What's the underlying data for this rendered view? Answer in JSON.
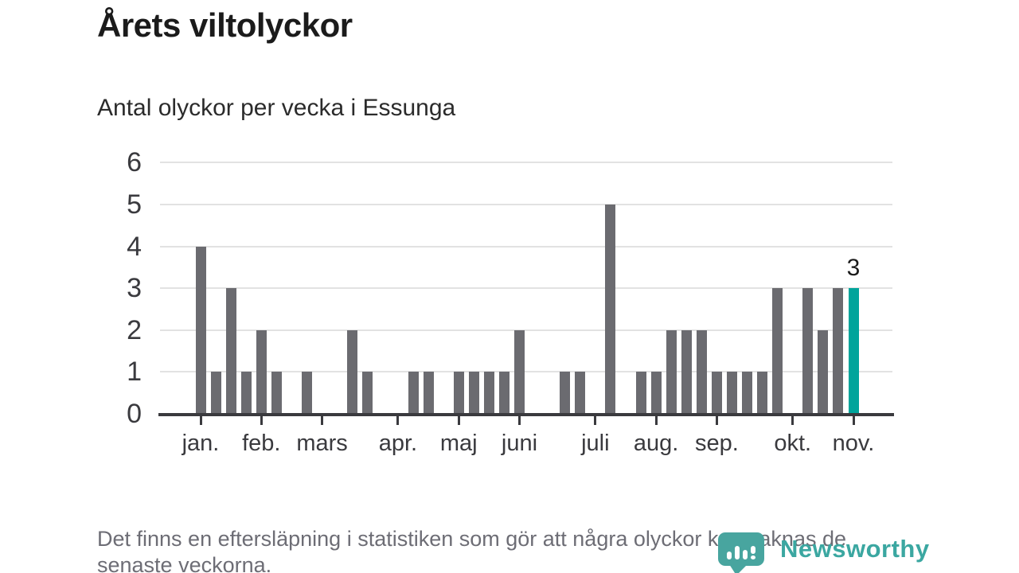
{
  "title": "Årets viltolyckor",
  "subtitle": "Antal olyckor per vecka i Essunga",
  "footnote": {
    "line1": "Det finns en eftersläpning i statistiken som gör att några olyckor kan saknas de",
    "line2": "senaste veckorna."
  },
  "logo": {
    "wordmark": "Newsworthy",
    "mark_icon": "newsworthy-pin-bar-chart-icon"
  },
  "colors": {
    "bar": "#6b6b70",
    "highlight": "#00a49b",
    "grid": "#e2e2e2",
    "axis": "#3a3a3e",
    "tick_label": "#3a3a3e",
    "title": "#1b1b1b",
    "subtitle": "#2b2b2b",
    "footnote": "#6d6d75",
    "logo": "#3ba7a1",
    "annotation": "#1b1b1b"
  },
  "chart_data": {
    "type": "bar",
    "title": "Årets viltolyckor",
    "subtitle": "Antal olyckor per vecka i Essunga",
    "x_unit": "week",
    "ylabel": "",
    "ylim": [
      0,
      6
    ],
    "yticks": [
      0,
      1,
      2,
      3,
      4,
      5,
      6
    ],
    "grid": true,
    "legend": "none",
    "values": [
      4,
      1,
      3,
      1,
      2,
      1,
      0,
      1,
      0,
      0,
      2,
      1,
      0,
      0,
      1,
      1,
      0,
      1,
      1,
      1,
      1,
      2,
      0,
      0,
      1,
      1,
      0,
      5,
      0,
      1,
      1,
      2,
      2,
      2,
      1,
      1,
      1,
      1,
      3,
      0,
      3,
      2,
      3,
      3
    ],
    "highlight_last_bar": true,
    "last_bar_label": "3",
    "month_ticks": [
      {
        "label": "jan.",
        "week": 1
      },
      {
        "label": "feb.",
        "week": 5
      },
      {
        "label": "mars",
        "week": 9
      },
      {
        "label": "apr.",
        "week": 14
      },
      {
        "label": "maj",
        "week": 18
      },
      {
        "label": "juni",
        "week": 22
      },
      {
        "label": "juli",
        "week": 27
      },
      {
        "label": "aug.",
        "week": 31
      },
      {
        "label": "sep.",
        "week": 35
      },
      {
        "label": "okt.",
        "week": 40
      },
      {
        "label": "nov.",
        "week": 44
      }
    ]
  }
}
